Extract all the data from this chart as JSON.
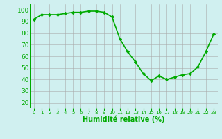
{
  "x": [
    0,
    1,
    2,
    3,
    4,
    5,
    6,
    7,
    8,
    9,
    10,
    11,
    12,
    13,
    14,
    15,
    16,
    17,
    18,
    19,
    20,
    21,
    22,
    23
  ],
  "y": [
    92,
    96,
    96,
    96,
    97,
    98,
    98,
    99,
    99,
    98,
    94,
    75,
    64,
    55,
    45,
    39,
    43,
    40,
    42,
    44,
    45,
    51,
    64,
    79
  ],
  "line_color": "#00aa00",
  "marker": "D",
  "markersize": 2.2,
  "linewidth": 1.2,
  "background_color": "#d0f0f0",
  "grid_color": "#aaaaaa",
  "xlabel": "Humidité relative (%)",
  "xlabel_color": "#00aa00",
  "xlabel_fontsize": 7,
  "yticks": [
    20,
    30,
    40,
    50,
    60,
    70,
    80,
    90,
    100
  ],
  "xtick_labels": [
    "0",
    "1",
    "2",
    "3",
    "4",
    "5",
    "6",
    "7",
    "8",
    "9",
    "10",
    "11",
    "12",
    "13",
    "14",
    "15",
    "16",
    "17",
    "18",
    "19",
    "20",
    "21",
    "22",
    "23"
  ],
  "ylim": [
    15,
    105
  ],
  "xlim": [
    -0.5,
    23.5
  ],
  "tick_color": "#00aa00",
  "ytick_fontsize": 6.5,
  "xtick_fontsize": 5.0,
  "grid_linewidth": 0.4
}
